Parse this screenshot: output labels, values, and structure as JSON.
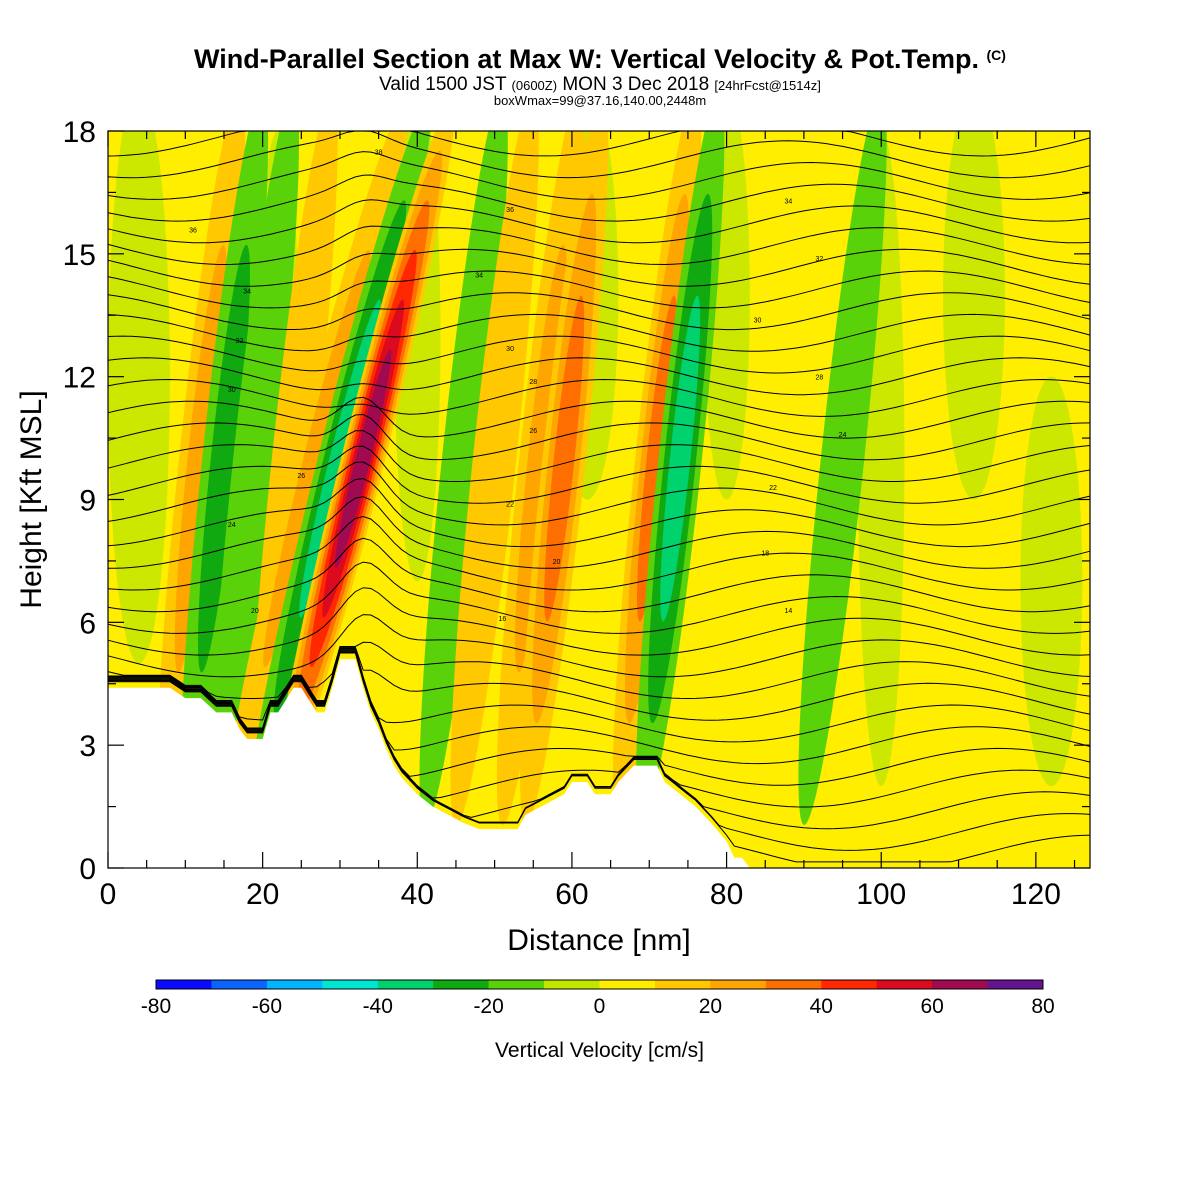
{
  "title": {
    "main": "Wind-Parallel Section at Max W: Vertical Velocity & Pot.Temp.",
    "main_suffix": "(C)",
    "valid_prefix": "Valid 1500 JST",
    "valid_utc": "(0600Z)",
    "valid_date": "MON 3 Dec 2018",
    "forecast": "[24hrFcst@1514z]",
    "box_info": "boxWmax=99@37.16,140.00,2448m"
  },
  "chart_data": {
    "type": "heatmap",
    "xlabel": "Distance [nm]",
    "ylabel": "Height [Kft MSL]",
    "xlim": [
      0,
      127
    ],
    "ylim": [
      0,
      18
    ],
    "x_ticks": [
      0,
      20,
      40,
      60,
      80,
      100,
      120
    ],
    "y_ticks": [
      0,
      3,
      6,
      9,
      12,
      15,
      18
    ],
    "colorbar": {
      "label": "Vertical Velocity [cm/s]",
      "min": -80,
      "max": 80,
      "step": 10,
      "tick_labels": [
        "-80",
        "-60",
        "-40",
        "-20",
        "0",
        "20",
        "40",
        "60",
        "80"
      ],
      "colors": [
        "#0a0aff",
        "#0a64ff",
        "#00b4ff",
        "#00e6d2",
        "#00d26e",
        "#10aa10",
        "#5ad20a",
        "#c3e600",
        "#ffee00",
        "#ffc800",
        "#ffa500",
        "#ff6e00",
        "#ff2800",
        "#dc0a1e",
        "#a00a50",
        "#64148c"
      ]
    },
    "terrain_kft": [
      [
        0,
        4.4
      ],
      [
        8,
        4.4
      ],
      [
        10,
        4.15
      ],
      [
        12,
        4.15
      ],
      [
        14,
        3.8
      ],
      [
        16,
        3.8
      ],
      [
        17,
        3.4
      ],
      [
        18,
        3.15
      ],
      [
        20,
        3.15
      ],
      [
        21,
        3.8
      ],
      [
        22,
        3.8
      ],
      [
        23,
        4.1
      ],
      [
        24,
        4.4
      ],
      [
        25,
        4.4
      ],
      [
        26,
        4.1
      ],
      [
        27,
        3.8
      ],
      [
        28,
        3.8
      ],
      [
        29,
        4.4
      ],
      [
        30,
        5.1
      ],
      [
        32,
        5.1
      ],
      [
        33,
        4.4
      ],
      [
        34,
        3.8
      ],
      [
        35,
        3.4
      ],
      [
        36,
        2.9
      ],
      [
        37,
        2.5
      ],
      [
        38,
        2.2
      ],
      [
        40,
        1.8
      ],
      [
        42,
        1.5
      ],
      [
        44,
        1.3
      ],
      [
        46,
        1.1
      ],
      [
        48,
        0.95
      ],
      [
        50,
        0.95
      ],
      [
        53,
        0.95
      ],
      [
        54,
        1.3
      ],
      [
        56,
        1.5
      ],
      [
        59,
        1.8
      ],
      [
        60,
        2.1
      ],
      [
        62,
        2.1
      ],
      [
        63,
        1.8
      ],
      [
        65,
        1.8
      ],
      [
        66,
        2.1
      ],
      [
        68,
        2.5
      ],
      [
        71,
        2.5
      ],
      [
        72,
        2.1
      ],
      [
        74,
        1.8
      ],
      [
        76,
        1.5
      ],
      [
        78,
        1.1
      ],
      [
        80,
        0.65
      ],
      [
        81,
        0.25
      ],
      [
        82,
        0.25
      ],
      [
        83,
        0
      ],
      [
        127,
        0
      ]
    ],
    "updrafts": [
      {
        "x": 12,
        "w": 25
      },
      {
        "x": 15,
        "w": -30
      },
      {
        "x": 19,
        "w": -20
      },
      {
        "x": 24,
        "w": 20
      },
      {
        "x": 27,
        "w": 25
      },
      {
        "x": 30,
        "w": -40
      },
      {
        "x": 33,
        "w": 65
      },
      {
        "x": 46,
        "w": -20
      },
      {
        "x": 50,
        "w": 20
      },
      {
        "x": 56,
        "w": 25
      },
      {
        "x": 59,
        "w": 35
      },
      {
        "x": 71,
        "w": 40
      },
      {
        "x": 74,
        "w": -40
      },
      {
        "x": 87,
        "w": -10
      },
      {
        "x": 95,
        "w": -20
      }
    ],
    "theta_contour_labels": [
      "38",
      "36",
      "36",
      "34",
      "34",
      "34",
      "32",
      "32",
      "30",
      "30",
      "30",
      "28",
      "28",
      "26",
      "26",
      "24",
      "24",
      "22",
      "22",
      "20",
      "20",
      "18",
      "16",
      "14"
    ]
  }
}
